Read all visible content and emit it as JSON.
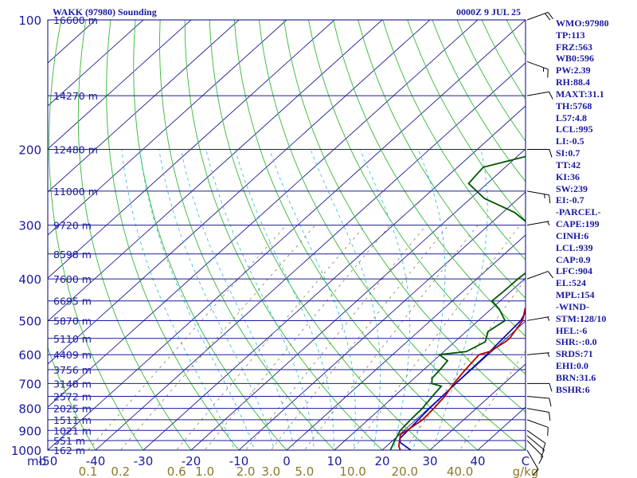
{
  "header": {
    "title": "WAKK (97980) Sounding",
    "valid_time": "0000Z  9 JUL 25"
  },
  "colors": {
    "frame": "#000080",
    "isobars": "#1a1a9a",
    "isotherms": "#1a1a9a",
    "dry_adiabats": "#33b833",
    "moist_adiabats": "#3fc0e0",
    "mixing_ratio_lines": "#8c7a5a",
    "mixing_ratio_labels": "#8a7a2a",
    "temperature": "#b00000",
    "dewpoint": "#005500",
    "parcel": "#0000b0",
    "wind_barbs": "#000000",
    "text": "#1a1aa0"
  },
  "chart_data": {
    "type": "skew-t",
    "title": "WAKK (97980) Sounding",
    "xlabel": "C",
    "ylabel": "mb",
    "pressure_axis": {
      "scale": "log",
      "ylim": [
        1000,
        100
      ],
      "ticks": [
        1000,
        900,
        800,
        700,
        600,
        500,
        400,
        300,
        200,
        100
      ]
    },
    "temperature_ticks": [
      "-50",
      "-40",
      "-30",
      "-20",
      "-10",
      "0",
      "10",
      "20",
      "30",
      "40",
      "C"
    ],
    "temperature_tick_values": [
      -50,
      -40,
      -30,
      -20,
      -10,
      0,
      10,
      20,
      30,
      40,
      50
    ],
    "mixing_ratio_labels": [
      "0.1",
      "0.2",
      "0.6",
      "1.0",
      "2.0",
      "3.0",
      "5.0",
      "10.0",
      "20.0",
      "40.0"
    ],
    "mixing_ratio_unit": "g/kg",
    "height_labels": [
      {
        "pressure": 1000,
        "text": "162 m"
      },
      {
        "pressure": 950,
        "text": "551 m"
      },
      {
        "pressure": 900,
        "text": "1021 m"
      },
      {
        "pressure": 850,
        "text": "1511 m"
      },
      {
        "pressure": 800,
        "text": "2025 m"
      },
      {
        "pressure": 750,
        "text": "2572 m"
      },
      {
        "pressure": 700,
        "text": "3148 m"
      },
      {
        "pressure": 650,
        "text": "3756 m"
      },
      {
        "pressure": 600,
        "text": "4409 m"
      },
      {
        "pressure": 550,
        "text": "5110 m"
      },
      {
        "pressure": 500,
        "text": "5870 m"
      },
      {
        "pressure": 450,
        "text": "6695 m"
      },
      {
        "pressure": 400,
        "text": "7600 m"
      },
      {
        "pressure": 350,
        "text": "8598 m"
      },
      {
        "pressure": 300,
        "text": "9720 m"
      },
      {
        "pressure": 250,
        "text": "11000 m"
      },
      {
        "pressure": 200,
        "text": "12480 m"
      },
      {
        "pressure": 150,
        "text": "14270 m"
      },
      {
        "pressure": 100,
        "text": "16600 m"
      }
    ],
    "temperature_profile": [
      {
        "p": 1000,
        "t": 23.8
      },
      {
        "p": 980,
        "t": 22.6
      },
      {
        "p": 950,
        "t": 21.4
      },
      {
        "p": 920,
        "t": 20.2
      },
      {
        "p": 900,
        "t": 20.6
      },
      {
        "p": 850,
        "t": 21.4
      },
      {
        "p": 800,
        "t": 21.1
      },
      {
        "p": 750,
        "t": 20.6
      },
      {
        "p": 700,
        "t": 19.5
      },
      {
        "p": 650,
        "t": 18.7
      },
      {
        "p": 600,
        "t": 18.1
      },
      {
        "p": 590,
        "t": 19.6
      },
      {
        "p": 560,
        "t": 20.6
      },
      {
        "p": 550,
        "t": 20.7
      },
      {
        "p": 500,
        "t": 19.3
      },
      {
        "p": 470,
        "t": 17.1
      },
      {
        "p": 450,
        "t": 16.7
      },
      {
        "p": 400,
        "t": 13.3
      },
      {
        "p": 370,
        "t": 12.0
      },
      {
        "p": 350,
        "t": 11.6
      },
      {
        "p": 320,
        "t": 8.4
      },
      {
        "p": 300,
        "t": 6.4
      },
      {
        "p": 250,
        "t": 0.6
      },
      {
        "p": 200,
        "t": -7.1
      },
      {
        "p": 170,
        "t": -11.6
      },
      {
        "p": 150,
        "t": -15.3
      },
      {
        "p": 130,
        "t": -17.9
      },
      {
        "p": 115,
        "t": -18.1
      },
      {
        "p": 105,
        "t": -15.4
      },
      {
        "p": 100,
        "t": -9.6
      }
    ],
    "dewpoint_profile": [
      {
        "p": 1000,
        "t": 21.7
      },
      {
        "p": 950,
        "t": 20.4
      },
      {
        "p": 900,
        "t": 19.2
      },
      {
        "p": 850,
        "t": 18.9
      },
      {
        "p": 800,
        "t": 18.7
      },
      {
        "p": 750,
        "t": 18.0
      },
      {
        "p": 710,
        "t": 17.5
      },
      {
        "p": 700,
        "t": 14.9
      },
      {
        "p": 680,
        "t": 13.7
      },
      {
        "p": 650,
        "t": 13.4
      },
      {
        "p": 620,
        "t": 12.9
      },
      {
        "p": 600,
        "t": 9.8
      },
      {
        "p": 590,
        "t": 14.7
      },
      {
        "p": 560,
        "t": 16.4
      },
      {
        "p": 530,
        "t": 14.6
      },
      {
        "p": 500,
        "t": 15.6
      },
      {
        "p": 470,
        "t": 11.7
      },
      {
        "p": 450,
        "t": 8.3
      },
      {
        "p": 430,
        "t": 8.5
      },
      {
        "p": 400,
        "t": 8.6
      },
      {
        "p": 370,
        "t": 9.2
      },
      {
        "p": 350,
        "t": 10.4
      },
      {
        "p": 340,
        "t": 4.3
      },
      {
        "p": 330,
        "t": 2.5
      },
      {
        "p": 320,
        "t": 0.8
      },
      {
        "p": 310,
        "t": 0.4
      },
      {
        "p": 300,
        "t": -1.3
      },
      {
        "p": 280,
        "t": -7.6
      },
      {
        "p": 260,
        "t": -17.1
      },
      {
        "p": 240,
        "t": -23.9
      },
      {
        "p": 220,
        "t": -24.6
      },
      {
        "p": 205,
        "t": -16.7
      },
      {
        "p": 190,
        "t": -15.0
      },
      {
        "p": 170,
        "t": -15.2
      },
      {
        "p": 150,
        "t": -19.3
      },
      {
        "p": 120,
        "t": -22.9
      },
      {
        "p": 105,
        "t": -22.7
      },
      {
        "p": 100,
        "t": -17.4
      }
    ],
    "parcel_profile": [
      {
        "p": 1000,
        "t": 26.0
      },
      {
        "p": 960,
        "t": 22.0
      },
      {
        "p": 939,
        "t": 21.0
      },
      {
        "p": 900,
        "t": 20.8
      },
      {
        "p": 800,
        "t": 20.2
      },
      {
        "p": 700,
        "t": 19.9
      },
      {
        "p": 600,
        "t": 19.7
      },
      {
        "p": 500,
        "t": 18.9
      },
      {
        "p": 400,
        "t": 14.1
      },
      {
        "p": 300,
        "t": 5.3
      },
      {
        "p": 250,
        "t": 0.4
      },
      {
        "p": 200,
        "t": -7.6
      },
      {
        "p": 150,
        "t": -18.7
      },
      {
        "p": 120,
        "t": -26.0
      },
      {
        "p": 100,
        "t": -31.7
      }
    ],
    "wind_barbs": [
      {
        "p": 1000,
        "dir": 150,
        "spd": 10
      },
      {
        "p": 950,
        "dir": 135,
        "spd": 10
      },
      {
        "p": 925,
        "dir": 130,
        "spd": 10
      },
      {
        "p": 900,
        "dir": 125,
        "spd": 10
      },
      {
        "p": 850,
        "dir": 110,
        "spd": 10
      },
      {
        "p": 800,
        "dir": 100,
        "spd": 10
      },
      {
        "p": 750,
        "dir": 95,
        "spd": 10
      },
      {
        "p": 700,
        "dir": 90,
        "spd": 10
      },
      {
        "p": 600,
        "dir": 85,
        "spd": 5
      },
      {
        "p": 500,
        "dir": 80,
        "spd": 5
      },
      {
        "p": 400,
        "dir": 70,
        "spd": 10
      },
      {
        "p": 300,
        "dir": 80,
        "spd": 5
      },
      {
        "p": 250,
        "dir": 100,
        "spd": 15
      },
      {
        "p": 200,
        "dir": 90,
        "spd": 10
      },
      {
        "p": 150,
        "dir": 80,
        "spd": 10
      },
      {
        "p": 125,
        "dir": 110,
        "spd": 15
      },
      {
        "p": 100,
        "dir": 70,
        "spd": 20
      }
    ]
  },
  "indices": [
    {
      "key": "WMO:",
      "value": "97980"
    },
    {
      "key": "TP:",
      "value": "113"
    },
    {
      "key": "FRZ:",
      "value": "563"
    },
    {
      "key": "WB0:",
      "value": "596"
    },
    {
      "key": "PW:",
      "value": "2.39"
    },
    {
      "key": "RH:",
      "value": "88.4"
    },
    {
      "key": "MAXT:",
      "value": "31.1"
    },
    {
      "key": "TH:",
      "value": "5768"
    },
    {
      "key": "L57:",
      "value": "4.8"
    },
    {
      "key": "LCL:",
      "value": "995"
    },
    {
      "key": "LI:",
      "value": "-0.5"
    },
    {
      "key": "SI:",
      "value": "0.7"
    },
    {
      "key": "TT:",
      "value": "42"
    },
    {
      "key": "KI:",
      "value": "36"
    },
    {
      "key": "SW:",
      "value": "239"
    },
    {
      "key": "EI:",
      "value": "-0.7"
    },
    {
      "key": "-PARCEL-",
      "value": ""
    },
    {
      "key": "CAPE:",
      "value": "199"
    },
    {
      "key": "CINH:",
      "value": "6"
    },
    {
      "key": "LCL:",
      "value": "939"
    },
    {
      "key": "CAP:",
      "value": "0.9"
    },
    {
      "key": "LFC:",
      "value": "904"
    },
    {
      "key": "EL:",
      "value": "524"
    },
    {
      "key": "MPL:",
      "value": "154"
    },
    {
      "key": "-WIND-",
      "value": ""
    },
    {
      "key": "STM:",
      "value": "128/10"
    },
    {
      "key": "HEL:",
      "value": "-6"
    },
    {
      "key": "SHR:",
      "value": "-:0.0"
    },
    {
      "key": "SRDS:",
      "value": "71"
    },
    {
      "key": "EHI:",
      "value": "0.0"
    },
    {
      "key": "BRN:",
      "value": "31.6"
    },
    {
      "key": "BSHR:",
      "value": "6"
    }
  ]
}
